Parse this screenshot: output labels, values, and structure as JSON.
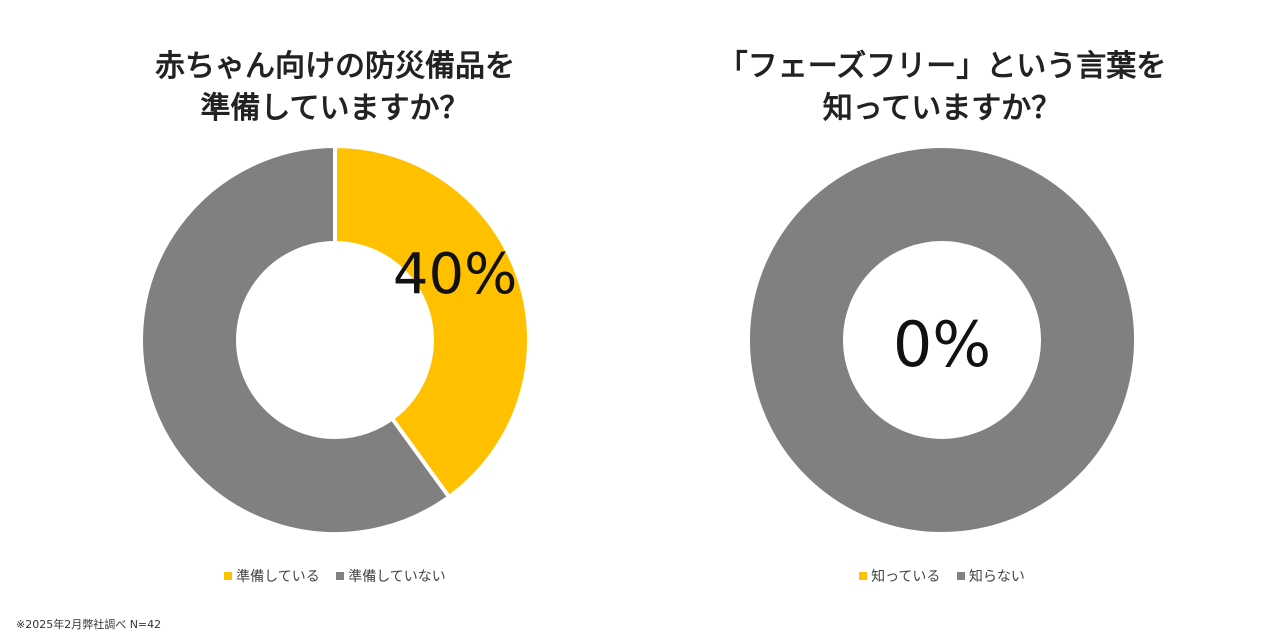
{
  "chart_data": [
    {
      "type": "pie",
      "title": "赤ちゃん向けの防災備品を\n準備していますか？",
      "categories": [
        "準備している",
        "準備していない"
      ],
      "values": [
        40,
        60
      ],
      "colors": [
        "#FFC000",
        "#808080"
      ],
      "center_label": "40%",
      "legend": "bottom"
    },
    {
      "type": "pie",
      "title": "「フェーズフリー」という言葉を\n知っていますか？",
      "categories": [
        "知っている",
        "知らない"
      ],
      "values": [
        0,
        100
      ],
      "colors": [
        "#FFC000",
        "#808080"
      ],
      "center_label": "0%",
      "legend": "bottom"
    }
  ],
  "footnote": "※2025年2月弊社調べ N=42"
}
